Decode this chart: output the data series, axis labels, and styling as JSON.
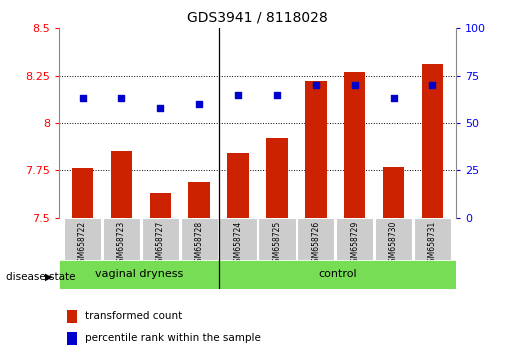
{
  "title": "GDS3941 / 8118028",
  "samples": [
    "GSM658722",
    "GSM658723",
    "GSM658727",
    "GSM658728",
    "GSM658724",
    "GSM658725",
    "GSM658726",
    "GSM658729",
    "GSM658730",
    "GSM658731"
  ],
  "transformed_count": [
    7.76,
    7.85,
    7.63,
    7.69,
    7.84,
    7.92,
    8.22,
    8.27,
    7.77,
    8.31
  ],
  "percentile_rank": [
    63,
    63,
    58,
    60,
    65,
    65,
    70,
    70,
    63,
    70
  ],
  "groups": [
    {
      "label": "vaginal dryness",
      "start": 0,
      "end": 4
    },
    {
      "label": "control",
      "start": 4,
      "end": 10
    }
  ],
  "ylim_left": [
    7.5,
    8.5
  ],
  "ylim_right": [
    0,
    100
  ],
  "yticks_left": [
    7.5,
    7.75,
    8.0,
    8.25,
    8.5
  ],
  "yticks_right": [
    0,
    25,
    50,
    75,
    100
  ],
  "bar_color": "#cc2200",
  "scatter_color": "#0000cc",
  "group_bg_color": "#77dd55",
  "tick_label_bg": "#cccccc",
  "legend_red_label": "transformed count",
  "legend_blue_label": "percentile rank within the sample",
  "disease_state_label": "disease state",
  "bar_width": 0.55,
  "sep_after_index": 3,
  "n_vaginal": 4,
  "n_control": 6
}
